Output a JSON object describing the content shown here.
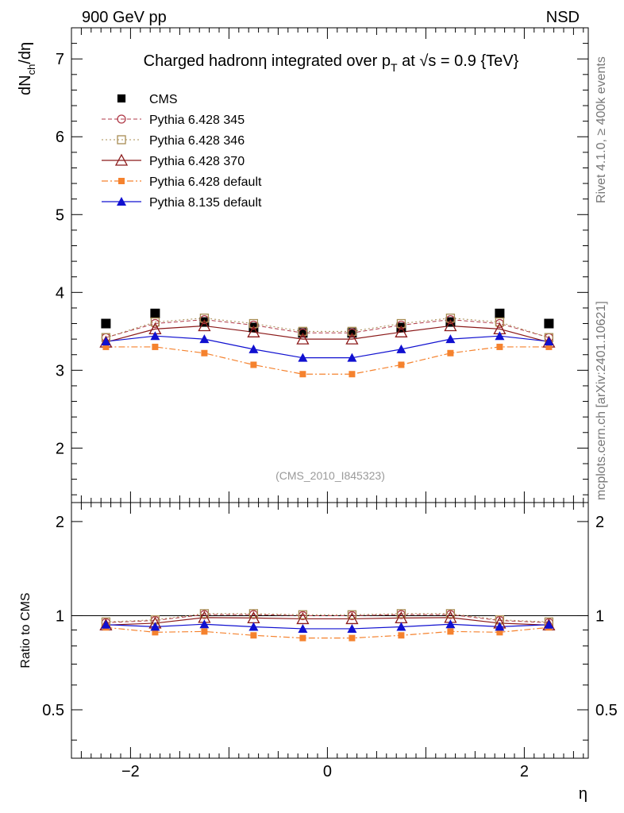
{
  "header": {
    "left": "900 GeV pp",
    "right": "NSD"
  },
  "side_text": {
    "rivet": "Rivet 4.1.0, ≥ 400k events",
    "mcplots": "mcplots.cern.ch [arXiv:2401.10621]"
  },
  "colors": {
    "CMS": "#000000",
    "Pythia 6.428 345": "#b03a48",
    "Pythia 6.428 346": "#a88c53",
    "Pythia 6.428 370": "#8b1a1a",
    "Pythia 6.428 default": "#f5822e",
    "Pythia 8.135 default": "#1010d0"
  },
  "chart_data": [
    {
      "type": "line",
      "panel": "main",
      "title": {
        "main": "Charged hadronη integrated over p",
        "sub": "T",
        "rest": " at √s = 0.9 {TeV}"
      },
      "ylabel": {
        "main": "dN",
        "sub": "ch",
        "rest": "/dη"
      },
      "xlabel": "",
      "ylim": [
        1.3,
        7.4
      ],
      "xlim": [
        -2.6,
        2.65
      ],
      "yticks": [
        2,
        3,
        4,
        5,
        6,
        7
      ],
      "watermark": "(CMS_2010_I845323)",
      "legend_position": "top-left",
      "x": [
        -2.25,
        -1.75,
        -1.25,
        -0.75,
        -0.25,
        0.25,
        0.75,
        1.25,
        1.75,
        2.25
      ],
      "series": [
        {
          "name": "CMS",
          "values": [
            3.6,
            3.73,
            3.62,
            3.55,
            3.48,
            3.48,
            3.55,
            3.62,
            3.73,
            3.6
          ]
        },
        {
          "name": "Pythia 6.428 345",
          "values": [
            3.42,
            3.6,
            3.65,
            3.58,
            3.48,
            3.48,
            3.58,
            3.65,
            3.6,
            3.42
          ]
        },
        {
          "name": "Pythia 6.428 346",
          "values": [
            3.42,
            3.62,
            3.67,
            3.6,
            3.5,
            3.5,
            3.6,
            3.67,
            3.62,
            3.42
          ]
        },
        {
          "name": "Pythia 6.428 370",
          "values": [
            3.36,
            3.53,
            3.57,
            3.49,
            3.4,
            3.4,
            3.49,
            3.57,
            3.53,
            3.36
          ]
        },
        {
          "name": "Pythia 6.428 default",
          "values": [
            3.3,
            3.3,
            3.22,
            3.07,
            2.95,
            2.95,
            3.07,
            3.22,
            3.3,
            3.3
          ]
        },
        {
          "name": "Pythia 8.135 default",
          "values": [
            3.37,
            3.44,
            3.4,
            3.27,
            3.16,
            3.16,
            3.27,
            3.4,
            3.44,
            3.37
          ]
        }
      ]
    },
    {
      "type": "line",
      "panel": "ratio",
      "ylabel": "Ratio to CMS",
      "xlabel": "η",
      "ylim": [
        0.35,
        2.3
      ],
      "xlim": [
        -2.6,
        2.65
      ],
      "yticks": [
        0.5,
        1,
        2
      ],
      "ytick_labels": [
        "0.5",
        "1",
        "2"
      ],
      "xticks": [
        -2,
        0,
        2
      ],
      "xtick_labels": [
        "−2",
        "0",
        "2"
      ],
      "reference": 1,
      "x": [
        -2.25,
        -1.75,
        -1.25,
        -0.75,
        -0.25,
        0.25,
        0.75,
        1.25,
        1.75,
        2.25
      ],
      "series": [
        {
          "name": "Pythia 6.428 345",
          "values": [
            0.95,
            0.965,
            1.008,
            1.008,
            1.0,
            1.0,
            1.008,
            1.008,
            0.965,
            0.95
          ]
        },
        {
          "name": "Pythia 6.428 346",
          "values": [
            0.955,
            0.97,
            1.015,
            1.015,
            1.007,
            1.007,
            1.015,
            1.015,
            0.97,
            0.955
          ]
        },
        {
          "name": "Pythia 6.428 370",
          "values": [
            0.933,
            0.946,
            0.986,
            0.983,
            0.977,
            0.977,
            0.983,
            0.986,
            0.946,
            0.933
          ]
        },
        {
          "name": "Pythia 6.428 default",
          "values": [
            0.917,
            0.885,
            0.89,
            0.865,
            0.848,
            0.848,
            0.865,
            0.89,
            0.885,
            0.917
          ]
        },
        {
          "name": "Pythia 8.135 default",
          "values": [
            0.936,
            0.922,
            0.939,
            0.921,
            0.908,
            0.908,
            0.921,
            0.939,
            0.922,
            0.936
          ]
        }
      ]
    }
  ]
}
